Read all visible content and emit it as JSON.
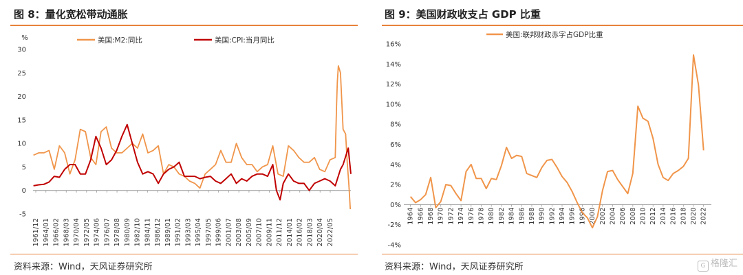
{
  "left": {
    "title": "图 8：量化宽松带动通胀",
    "source": "资料来源：Wind，天风证券研究所"
  },
  "right": {
    "title": "图 9：美国财政收支占 GDP 比重",
    "source": "资料来源：Wind，天风证券研究所"
  },
  "watermark": {
    "icon": "G",
    "text": "格隆汇"
  },
  "colors": {
    "m2": "#f0954a",
    "cpi": "#c00000",
    "deficit": "#f0954a",
    "rule": "#e8823a"
  },
  "chart_data": [
    {
      "type": "line",
      "unit": "%",
      "ylim": [
        -5,
        30
      ],
      "yticks": [
        -5,
        0,
        5,
        10,
        15,
        20,
        25,
        30
      ],
      "xlim": [
        1961.92,
        2023.0
      ],
      "xticks": [
        "1961/12",
        "1964/01",
        "1966/02",
        "1968/03",
        "1970/04",
        "1972/05",
        "1974/06",
        "1976/07",
        "1978/08",
        "1980/09",
        "1982/10",
        "1984/11",
        "1986/12",
        "1989/01",
        "1991/02",
        "1993/03",
        "1995/04",
        "1997/05",
        "1999/06",
        "2001/07",
        "2003/08",
        "2005/09",
        "2007/10",
        "2009/11",
        "2011/12",
        "2014/01",
        "2016/02",
        "2018/03",
        "2020/04",
        "2022/05"
      ],
      "legend_position": "top",
      "series": [
        {
          "name": "美国:M2:同比",
          "x": [
            1962,
            1963,
            1964,
            1965,
            1966,
            1967,
            1968,
            1969,
            1970,
            1971,
            1972,
            1973,
            1974,
            1975,
            1976,
            1977,
            1978,
            1979,
            1980,
            1981,
            1982,
            1983,
            1984,
            1985,
            1986,
            1987,
            1988,
            1989,
            1990,
            1991,
            1992,
            1993,
            1994,
            1995,
            1996,
            1997,
            1998,
            1999,
            2000,
            2001,
            2002,
            2003,
            2004,
            2005,
            2006,
            2007,
            2008,
            2009,
            2010,
            2011,
            2012,
            2013,
            2014,
            2015,
            2016,
            2017,
            2018,
            2019,
            2020.0,
            2020.25,
            2020.4,
            2020.6,
            2021.0,
            2021.5,
            2022.0,
            2022.3,
            2022.6,
            2022.9
          ],
          "y": [
            7.5,
            8.0,
            8.0,
            8.5,
            4.5,
            9.5,
            8.0,
            3.5,
            6.5,
            13.0,
            12.5,
            7.0,
            5.5,
            12.5,
            13.5,
            9.0,
            8.0,
            8.0,
            9.0,
            10.0,
            9.0,
            12.0,
            8.0,
            8.5,
            9.5,
            3.5,
            5.5,
            5.0,
            3.5,
            3.0,
            2.0,
            1.5,
            0.5,
            3.5,
            4.5,
            5.5,
            8.5,
            6.0,
            6.0,
            10.0,
            7.0,
            5.5,
            5.5,
            4.0,
            5.0,
            5.5,
            9.5,
            3.5,
            3.0,
            9.5,
            8.5,
            7.0,
            6.0,
            6.0,
            7.0,
            4.5,
            4.0,
            6.5,
            7.0,
            18.0,
            23.0,
            26.5,
            25.0,
            13.0,
            12.0,
            6.0,
            1.5,
            -4.0
          ]
        },
        {
          "name": "美国:CPI:当月同比",
          "x": [
            1962,
            1963,
            1964,
            1965,
            1966,
            1967,
            1968,
            1969,
            1970,
            1971,
            1972,
            1973,
            1974,
            1975,
            1976,
            1977,
            1978,
            1979,
            1980,
            1981,
            1982,
            1983,
            1984,
            1985,
            1986,
            1987,
            1988,
            1989,
            1990,
            1991,
            1992,
            1993,
            1994,
            1995,
            1996,
            1997,
            1998,
            1999,
            2000,
            2001,
            2002,
            2003,
            2004,
            2005,
            2006,
            2007,
            2008,
            2008.7,
            2009.4,
            2010,
            2011,
            2012,
            2013,
            2014,
            2015,
            2016,
            2017,
            2018,
            2019,
            2020,
            2021,
            2021.5,
            2022.5,
            2023.0
          ],
          "y": [
            1.0,
            1.2,
            1.3,
            1.8,
            3.0,
            2.8,
            4.5,
            5.5,
            5.5,
            3.5,
            3.5,
            6.5,
            11.5,
            9.0,
            5.5,
            6.5,
            8.5,
            11.5,
            14.0,
            10.0,
            6.0,
            3.5,
            4.0,
            3.5,
            1.5,
            3.5,
            4.5,
            5.0,
            6.0,
            3.0,
            3.0,
            3.0,
            2.5,
            2.8,
            3.0,
            2.0,
            1.5,
            2.5,
            3.5,
            1.5,
            2.5,
            2.0,
            3.0,
            3.5,
            3.5,
            3.0,
            5.5,
            0.0,
            -2.0,
            1.5,
            3.5,
            2.0,
            1.5,
            1.5,
            0.0,
            1.5,
            2.0,
            2.5,
            2.0,
            1.0,
            4.5,
            5.5,
            9.0,
            3.5
          ]
        }
      ]
    },
    {
      "type": "line",
      "ylim": [
        -4,
        16
      ],
      "yticks": [
        "-4%",
        "-2%",
        "0%",
        "2%",
        "4%",
        "6%",
        "8%",
        "10%",
        "12%",
        "14%",
        "16%"
      ],
      "xlim": [
        1963.5,
        2023.0
      ],
      "xticks": [
        "1964",
        "1966",
        "1968",
        "1970",
        "1972",
        "1974",
        "1976",
        "1978",
        "1980",
        "1982",
        "1984",
        "1986",
        "1988",
        "1990",
        "1992",
        "1994",
        "1996",
        "1998",
        "2000",
        "2002",
        "2004",
        "2006",
        "2008",
        "2010",
        "2012",
        "2014",
        "2016",
        "2018",
        "2020",
        "2022"
      ],
      "legend_position": "top",
      "series": [
        {
          "name": "美国:联邦财政赤字占GDP比重",
          "x": [
            1964,
            1965,
            1966,
            1967,
            1968,
            1969,
            1970,
            1971,
            1972,
            1973,
            1974,
            1975,
            1976,
            1977,
            1978,
            1979,
            1980,
            1981,
            1982,
            1983,
            1984,
            1985,
            1986,
            1987,
            1988,
            1989,
            1990,
            1991,
            1992,
            1993,
            1994,
            1995,
            1996,
            1997,
            1998,
            1999,
            2000,
            2001,
            2002,
            2003,
            2004,
            2005,
            2006,
            2007,
            2008,
            2009,
            2010,
            2011,
            2012,
            2013,
            2014,
            2015,
            2016,
            2017,
            2018,
            2019,
            2020,
            2021,
            2022
          ],
          "y": [
            0.8,
            0.2,
            0.5,
            1.0,
            2.7,
            -0.3,
            0.3,
            2.0,
            1.9,
            1.1,
            0.4,
            3.3,
            4.0,
            2.6,
            2.6,
            1.6,
            2.6,
            2.5,
            3.9,
            5.7,
            4.6,
            4.9,
            4.8,
            3.1,
            2.9,
            2.7,
            3.7,
            4.4,
            4.5,
            3.7,
            2.8,
            2.2,
            1.3,
            0.2,
            -0.8,
            -1.3,
            -2.3,
            -1.2,
            1.4,
            3.3,
            3.4,
            2.5,
            1.8,
            1.1,
            3.1,
            9.8,
            8.6,
            8.3,
            6.6,
            4.0,
            2.7,
            2.4,
            3.1,
            3.4,
            3.8,
            4.6,
            14.9,
            11.9,
            5.4
          ]
        }
      ]
    }
  ]
}
